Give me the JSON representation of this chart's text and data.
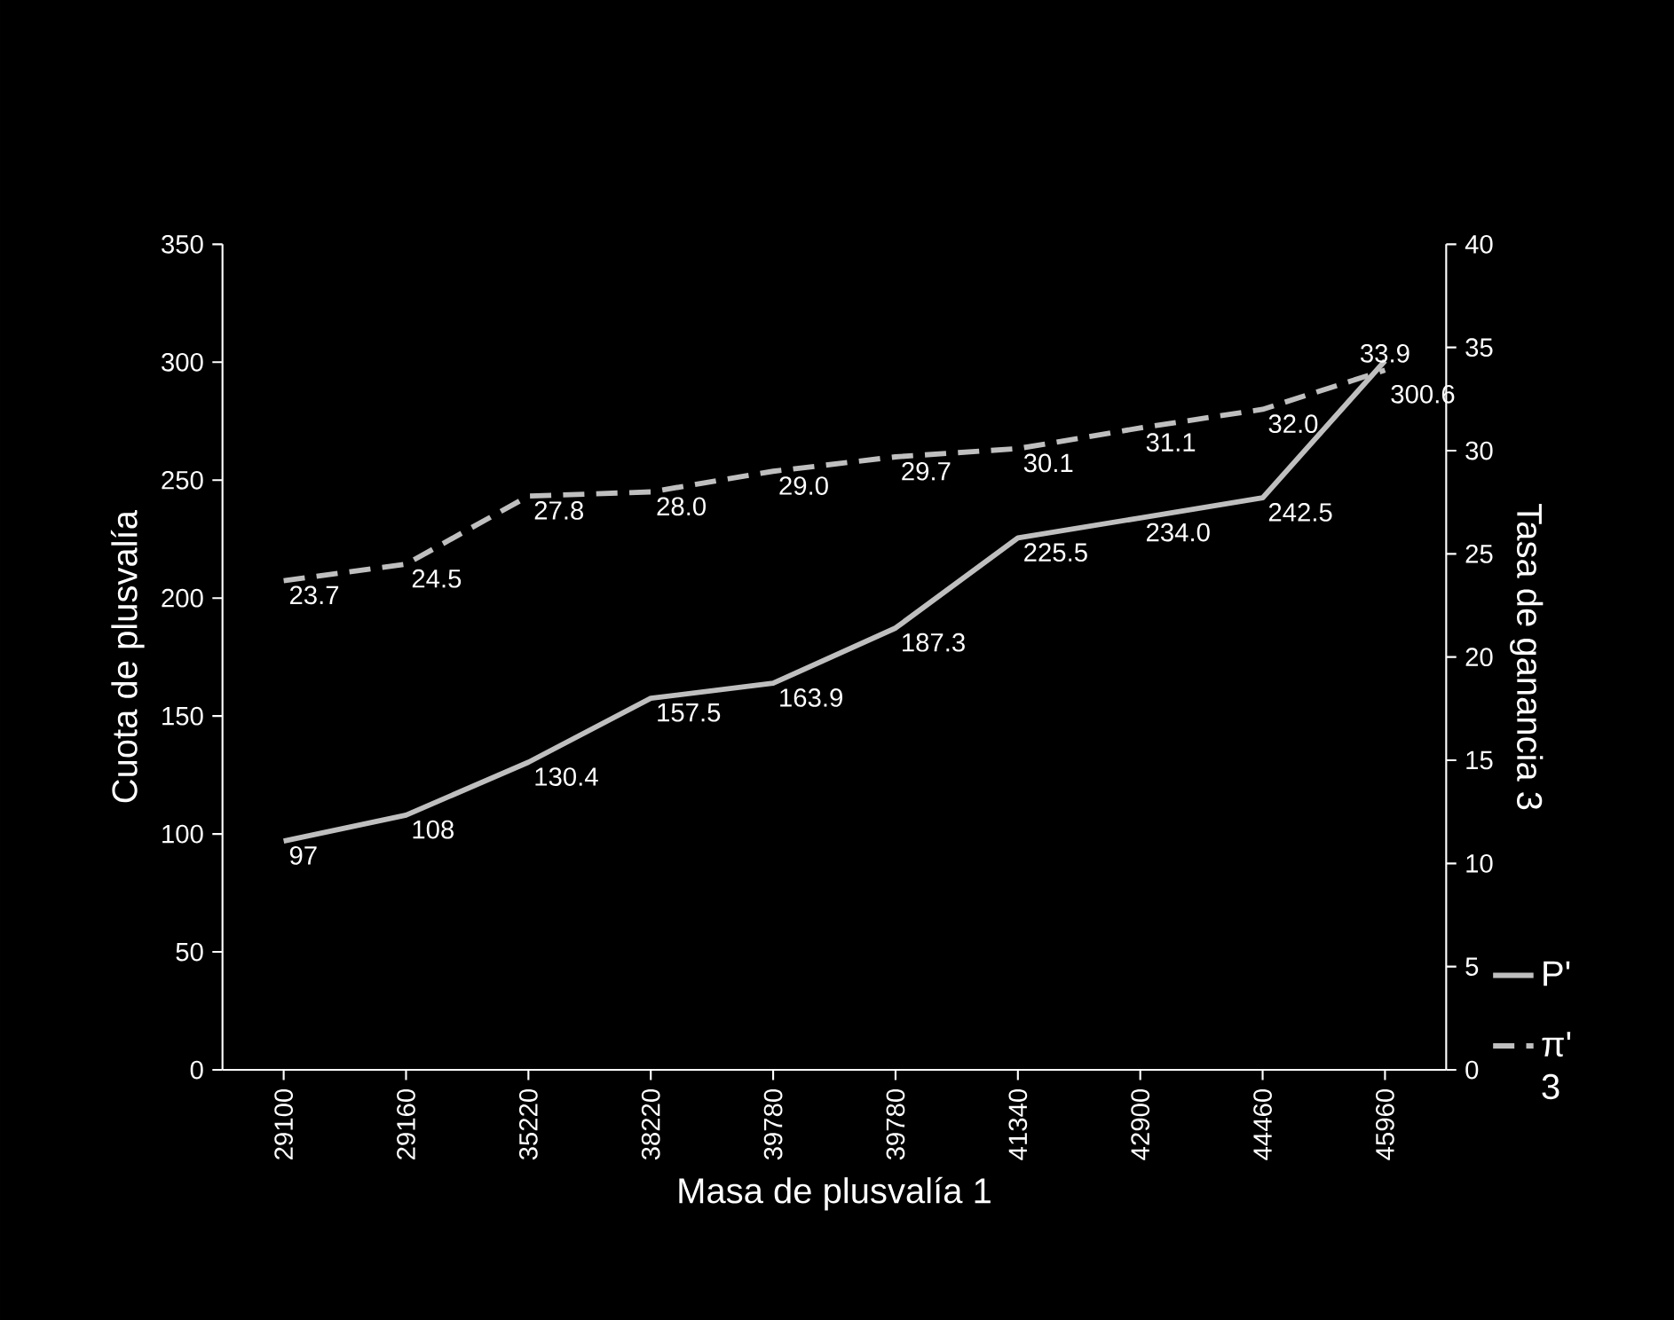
{
  "chart_data": {
    "type": "line",
    "xlabel": "Masa de plusvalía  1",
    "ylabel": "Cuota de plusvalía",
    "y2label": "Tasa de ganancia  3",
    "categories": [
      "29100",
      "29160",
      "35220",
      "38220",
      "39780",
      "39780",
      "41340",
      "42900",
      "44460",
      "45960"
    ],
    "ylim": [
      0,
      350
    ],
    "yticks": [
      0,
      50,
      100,
      150,
      200,
      250,
      300,
      350
    ],
    "y2lim": [
      0,
      40
    ],
    "y2ticks": [
      0,
      5,
      10,
      15,
      20,
      25,
      30,
      35,
      40
    ],
    "legend": "bottom right",
    "series": [
      {
        "name": "P'",
        "color": "#bfbfbf",
        "line_style": "solid",
        "values": [
          97,
          108,
          130.4,
          157.5,
          163.9,
          187.3,
          225.5,
          234.0,
          242.5,
          300.6
        ],
        "value_labels": [
          "97",
          "108",
          "130.4",
          "157.5",
          "163.9",
          "187.3",
          "225.5",
          "234.0",
          "242.5",
          "300.6"
        ]
      },
      {
        "name": "π' 3",
        "color": "#bfbfbf",
        "line_style": "dashed",
        "axis": "y2",
        "values": [
          23.7,
          24.5,
          27.8,
          28.0,
          29.0,
          29.7,
          30.1,
          31.1,
          32.0,
          33.9
        ],
        "value_labels": [
          "23.7",
          "24.5",
          "27.8",
          "28.0",
          "29.0",
          "29.7",
          "30.1",
          "31.1",
          "32.0",
          "33.9"
        ]
      }
    ]
  }
}
